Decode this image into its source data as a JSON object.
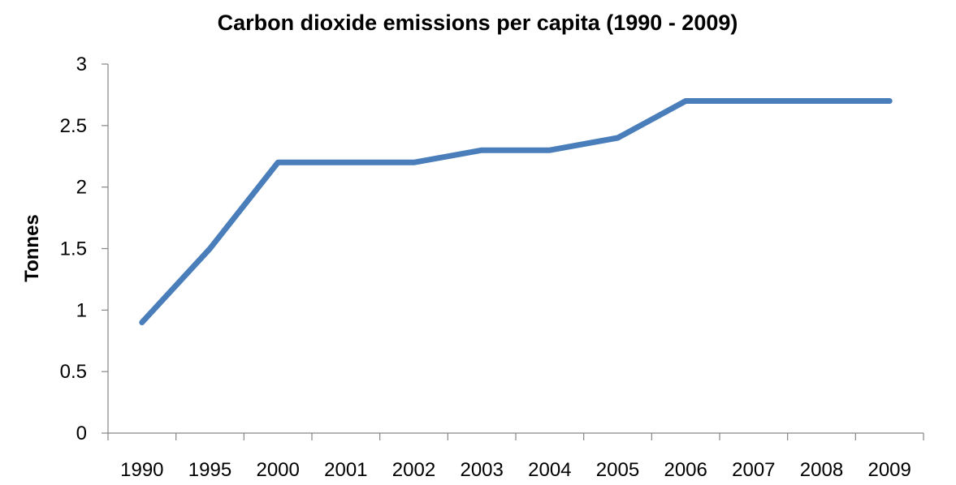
{
  "chart_data": {
    "type": "line",
    "title": "Carbon dioxide emissions per capita (1990 - 2009)",
    "xlabel": "",
    "ylabel": "Tonnes",
    "categories": [
      "1990",
      "1995",
      "2000",
      "2001",
      "2002",
      "2003",
      "2004",
      "2005",
      "2006",
      "2007",
      "2008",
      "2009"
    ],
    "series": [
      {
        "values": [
          0.9,
          1.5,
          2.2,
          2.2,
          2.2,
          2.3,
          2.3,
          2.4,
          2.7,
          2.7,
          2.7,
          2.7
        ]
      }
    ],
    "ylim": [
      0,
      3
    ],
    "yticks": [
      "0",
      "0.5",
      "1",
      "1.5",
      "2",
      "2.5",
      "3"
    ],
    "grid": false,
    "legend": "none",
    "colors": {
      "line": "#4a7ebb",
      "axis": "#868686",
      "text": "#000000"
    }
  }
}
